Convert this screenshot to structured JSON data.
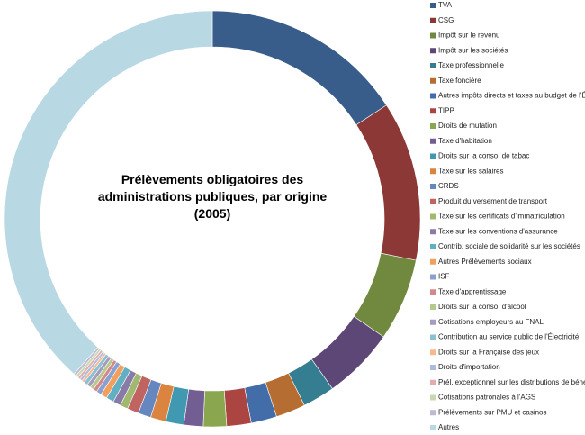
{
  "chart_data": {
    "type": "donut",
    "title": "Prélèvements obligatoires des administrations publiques, par origine (2005)",
    "categories": [
      "TVA",
      "CSG",
      "Impôt sur le revenu",
      "Impôt sur les sociétés",
      "Taxe professionnelle",
      "Taxe foncière",
      "Autres impôts directs et taxes au budget de l'État",
      "TIPP",
      "Droits de mutation",
      "Taxe d'habitation",
      "Droits sur la conso. de tabac",
      "Taxe sur les salaires",
      "CRDS",
      "Produit du versement de transport",
      "Taxe sur les certificats d'immatriculation",
      "Taxe sur les conventions d'assurance",
      "Contrib. sociale de solidarité sur les sociétés",
      "Autres Prélèvements sociaux",
      "ISF",
      "Taxe d'apprentissage",
      "Droits sur la conso. d'alcool",
      "Cotisations employeurs au FNAL",
      "Contribution au service public de l'Électricité",
      "Droits sur la Française des jeux",
      "Droits d'importation",
      "Prél. exceptionnel sur les distributions de bénéfices",
      "Cotisations patronales à l'AGS",
      "Prélèvements sur PMU et casinos",
      "Autres"
    ],
    "values": [
      15.8,
      12.4,
      6.4,
      5.6,
      2.5,
      2.3,
      2.0,
      1.9,
      1.8,
      1.5,
      1.4,
      1.2,
      1.0,
      0.9,
      0.6,
      0.6,
      0.6,
      0.5,
      0.4,
      0.3,
      0.3,
      0.3,
      0.3,
      0.2,
      0.2,
      0.2,
      0.2,
      0.2,
      38.4
    ],
    "colors": [
      "#385d8a",
      "#8c3836",
      "#71893f",
      "#5c4776",
      "#357d91",
      "#b66d31",
      "#426da9",
      "#ab4542",
      "#8aa64e",
      "#725e93",
      "#4199b1",
      "#db8440",
      "#6586bf",
      "#c06461",
      "#a0b86f",
      "#8a7ba6",
      "#62afc4",
      "#f09f5d",
      "#89a1d1",
      "#d3888a",
      "#b5c98f",
      "#a59bbc",
      "#8cc0d0",
      "#f6b88f",
      "#aebada",
      "#dfadae",
      "#cad7b2",
      "#c0bad1",
      "#b8d8e4"
    ],
    "legend": "right"
  }
}
